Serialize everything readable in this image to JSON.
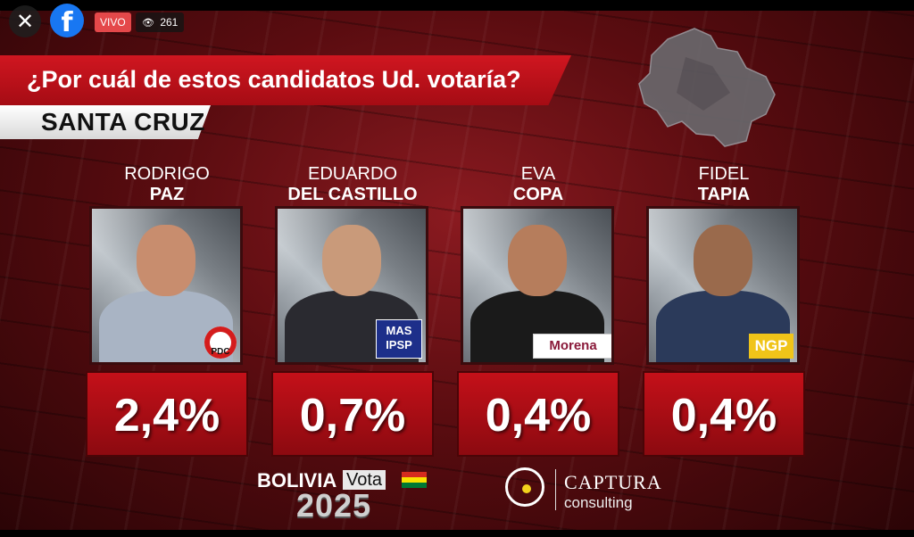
{
  "overlay": {
    "close_glyph": "✕",
    "fb_glyph": "f",
    "live_label": "VIVO",
    "viewer_count": "261"
  },
  "header": {
    "question": "¿Por cuál de estos candidatos Ud. votaría?",
    "region": "SANTA CRUZ"
  },
  "candidates": [
    {
      "first": "RODRIGO",
      "last": "PAZ",
      "party": "PDC",
      "percent": "2,4%"
    },
    {
      "first": "EDUARDO",
      "last": "DEL CASTILLO",
      "party": "MAS IPSP",
      "percent": "0,7%"
    },
    {
      "first": "EVA",
      "last": "COPA",
      "party": "Morena",
      "percent": "0,4%"
    },
    {
      "first": "FIDEL",
      "last": "TAPIA",
      "party": "NGP",
      "percent": "0,4%"
    }
  ],
  "footer": {
    "brand_bolivia": "BOLIVIA",
    "brand_vota": "Vota",
    "brand_year": "2025",
    "sponsor_name": "CAPTURA",
    "sponsor_sub": "consulting"
  },
  "colors": {
    "accent_red": "#c41019",
    "fb_blue": "#1877f2",
    "live_red": "#e4484a"
  }
}
